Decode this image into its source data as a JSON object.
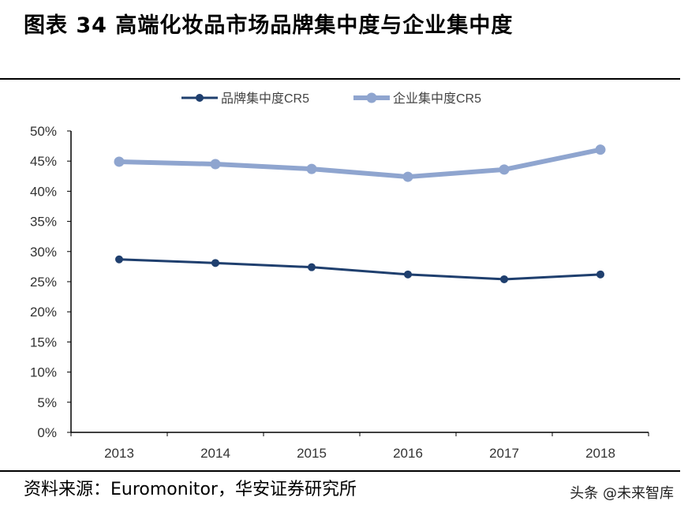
{
  "title": "图表 34  高端化妆品市场品牌集中度与企业集中度",
  "source": "资料来源：Euromonitor，华安证券研究所",
  "watermark": "头条 @未来智库",
  "chart_data": {
    "type": "line",
    "categories": [
      "2013",
      "2014",
      "2015",
      "2016",
      "2017",
      "2018"
    ],
    "ylim": [
      0,
      50
    ],
    "yticks": [
      "0%",
      "5%",
      "10%",
      "15%",
      "20%",
      "25%",
      "30%",
      "35%",
      "40%",
      "45%",
      "50%"
    ],
    "grid": false,
    "legend_position": "top",
    "series": [
      {
        "name": "品牌集中度CR5",
        "color": "#1f3f6e",
        "values": [
          28.7,
          28.1,
          27.4,
          26.2,
          25.4,
          26.2
        ]
      },
      {
        "name": "企业集中度CR5",
        "color": "#8fa5cf",
        "values": [
          44.9,
          44.5,
          43.7,
          42.4,
          43.6,
          46.9
        ]
      }
    ]
  }
}
